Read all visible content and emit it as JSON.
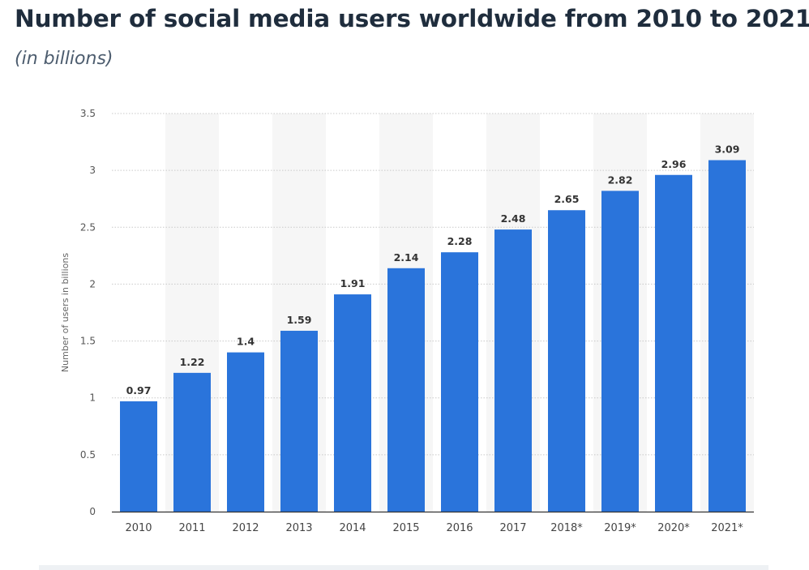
{
  "title": "Number of social media users worldwide from 2010 to 2021",
  "subtitle": "(in billions)",
  "chart_data": {
    "type": "bar",
    "title": "Number of social media users worldwide from 2010 to 2021",
    "subtitle": "(in billions)",
    "xlabel": "",
    "ylabel": "Number of users in billions",
    "categories": [
      "2010",
      "2011",
      "2012",
      "2013",
      "2014",
      "2015",
      "2016",
      "2017",
      "2018*",
      "2019*",
      "2020*",
      "2021*"
    ],
    "values": [
      0.97,
      1.22,
      1.4,
      1.59,
      1.91,
      2.14,
      2.28,
      2.48,
      2.65,
      2.82,
      2.96,
      3.09
    ],
    "value_labels": [
      "0.97",
      "1.22",
      "1.4",
      "1.59",
      "1.91",
      "2.14",
      "2.28",
      "2.48",
      "2.65",
      "2.82",
      "2.96",
      "3.09"
    ],
    "ylim": [
      0,
      3.5
    ],
    "yticks": [
      "0",
      "0.5",
      "1",
      "1.5",
      "2",
      "2.5",
      "3",
      "3.5"
    ],
    "grid": true,
    "colors": {
      "bar": "#2a74db",
      "stripe": "#f6f6f6",
      "grid": "#c9c9c9",
      "axis": "#333333"
    }
  }
}
